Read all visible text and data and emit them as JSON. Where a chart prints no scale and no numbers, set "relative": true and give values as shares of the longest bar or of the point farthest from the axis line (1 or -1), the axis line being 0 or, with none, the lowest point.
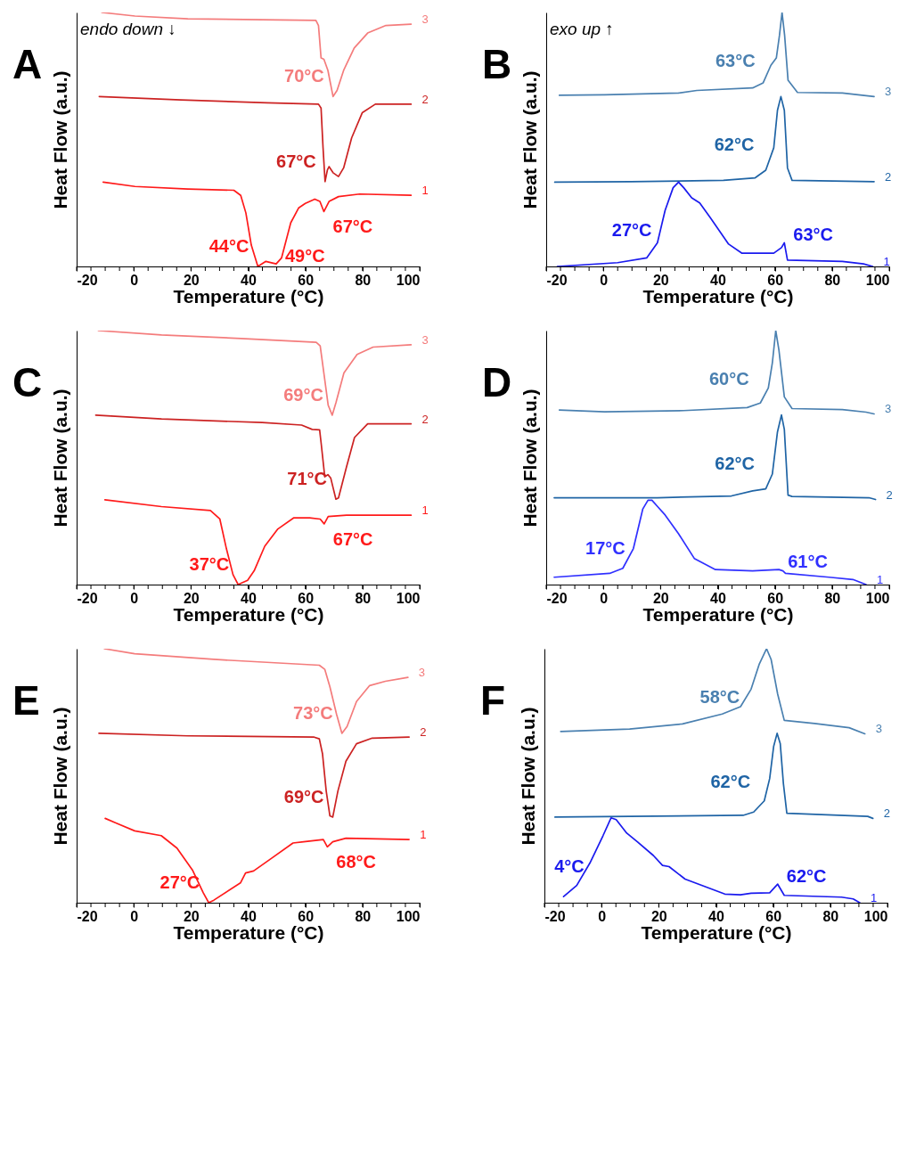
{
  "chart_data": [
    {
      "type": "line",
      "title": "A",
      "xlabel": "Temperature (°C)",
      "ylabel": "Heat Flow (a.u.)",
      "relative": true,
      "legend": false,
      "grid": false,
      "xlim": [
        -20,
        100
      ],
      "xticks": [
        -20,
        {
          "value": -15,
          "label": null
        },
        {
          "value": -10,
          "label": null
        },
        {
          "value": -5,
          "label": null
        },
        0,
        {
          "value": 5,
          "label": null
        },
        {
          "value": 10,
          "label": null
        },
        {
          "value": 15,
          "label": null
        },
        20,
        {
          "value": 25,
          "label": null
        },
        {
          "value": 30,
          "label": null
        },
        {
          "value": 35,
          "label": null
        },
        40,
        {
          "value": 45,
          "label": null
        },
        {
          "value": 50,
          "label": null
        },
        {
          "value": 55,
          "label": null
        },
        60,
        {
          "value": 65,
          "label": null
        },
        {
          "value": 70,
          "label": null
        },
        {
          "value": 75,
          "label": null
        },
        80,
        {
          "value": 85,
          "label": null
        },
        {
          "value": 90,
          "label": null
        },
        {
          "value": 95,
          "label": null
        },
        100
      ],
      "series": [
        {
          "name": "3",
          "color": "#f47c7c",
          "x": [
            -11.2,
            0.4,
            18.9,
            63.7,
            64.6,
            65.5,
            66.5,
            67.9,
            69.7,
            71.1,
            73.4,
            77.1,
            81.8,
            88.2,
            97
          ],
          "values": [
            1.0,
            0.986,
            0.975,
            0.969,
            0.949,
            0.821,
            0.816,
            0.772,
            0.669,
            0.693,
            0.772,
            0.86,
            0.919,
            0.949,
            0.954
          ]
        },
        {
          "name": "2",
          "color": "#cc2222",
          "x": [
            -12.1,
            16.5,
            46.6,
            64.6,
            65.5,
            66.2,
            66.9,
            67.7,
            68.3,
            69.7,
            71.6,
            73.4,
            76.2,
            79.9,
            84.5,
            97
          ],
          "values": [
            0.669,
            0.656,
            0.644,
            0.639,
            0.624,
            0.467,
            0.334,
            0.379,
            0.393,
            0.369,
            0.354,
            0.388,
            0.506,
            0.605,
            0.639,
            0.639
          ]
        },
        {
          "name": "1",
          "color": "#ff1a1a",
          "x": [
            -10.7,
            0.4,
            18.9,
            35.0,
            37.4,
            39.2,
            41.1,
            43.4,
            46.2,
            49.8,
            51.7,
            54.9,
            57.7,
            60,
            63.3,
            65.1,
            66.5,
            68.3,
            71.6,
            79,
            97
          ],
          "values": [
            0.332,
            0.315,
            0.305,
            0.3,
            0.28,
            0.211,
            0.084,
            0,
            0.02,
            0.01,
            0.034,
            0.172,
            0.231,
            0.248,
            0.265,
            0.256,
            0.216,
            0.256,
            0.275,
            0.285,
            0.28
          ]
        }
      ],
      "annotations": [
        "endo down ↓",
        {
          "text": "70°C",
          "x": 69.7,
          "y": 0.669
        },
        {
          "text": "67°C",
          "x": 66.9,
          "y": 0.334
        },
        {
          "text": "67°C",
          "x": 66.5,
          "y": 0.216
        },
        {
          "text": "44°C",
          "x": 43.4,
          "y": 0
        },
        {
          "text": "49°C",
          "x": 49.8,
          "y": 0.01
        }
      ]
    },
    {
      "type": "line",
      "title": "B",
      "xlabel": "Temperature (°C)",
      "ylabel": "Heat Flow (a.u.)",
      "relative": true,
      "legend": false,
      "grid": false,
      "xlim": [
        -20,
        100
      ],
      "xticks": [
        -20,
        {
          "value": -15,
          "label": null
        },
        {
          "value": -10,
          "label": null
        },
        {
          "value": -5,
          "label": null
        },
        0,
        {
          "value": 5,
          "label": null
        },
        {
          "value": 10,
          "label": null
        },
        {
          "value": 15,
          "label": null
        },
        20,
        {
          "value": 25,
          "label": null
        },
        {
          "value": 30,
          "label": null
        },
        {
          "value": 35,
          "label": null
        },
        40,
        {
          "value": 45,
          "label": null
        },
        {
          "value": 50,
          "label": null
        },
        {
          "value": 55,
          "label": null
        },
        60,
        {
          "value": 65,
          "label": null
        },
        {
          "value": 70,
          "label": null
        },
        {
          "value": 75,
          "label": null
        },
        80,
        {
          "value": 85,
          "label": null
        },
        {
          "value": 90,
          "label": null
        },
        {
          "value": 95,
          "label": null
        },
        100
      ],
      "series": [
        {
          "name": "3",
          "color": "#4a80b0",
          "x": [
            -15.4,
            0.4,
            26.3,
            32.7,
            52.2,
            55.9,
            58.6,
            60.5,
            61.6,
            62.5,
            63.4,
            64.6,
            67.9,
            83.6,
            94.7
          ],
          "values": [
            0.674,
            0.676,
            0.683,
            0.693,
            0.703,
            0.723,
            0.792,
            0.821,
            0.91,
            1.0,
            0.91,
            0.733,
            0.685,
            0.683,
            0.669
          ]
        },
        {
          "name": "2",
          "color": "#1f64a5",
          "x": [
            -17,
            9.6,
            42,
            53.1,
            56.8,
            59.6,
            60.9,
            62.1,
            63.3,
            64.4,
            66,
            94.7
          ],
          "values": [
            0.332,
            0.334,
            0.339,
            0.349,
            0.379,
            0.467,
            0.615,
            0.669,
            0.615,
            0.388,
            0.339,
            0.334
          ]
        },
        {
          "name": "1",
          "color": "#1a1aee",
          "x": [
            -16.1,
            5,
            15.2,
            18.9,
            21.6,
            24.4,
            26.3,
            28.1,
            30.9,
            33.7,
            37.4,
            43.8,
            48.5,
            59.6,
            62.3,
            63.3,
            64.4,
            83.6,
            91,
            94.2
          ],
          "values": [
            0,
            0.015,
            0.034,
            0.093,
            0.221,
            0.31,
            0.332,
            0.31,
            0.27,
            0.25,
            0.192,
            0.088,
            0.052,
            0.052,
            0.074,
            0.093,
            0.025,
            0.02,
            0.01,
            0
          ]
        }
      ],
      "annotations": [
        "exo up ↑",
        {
          "text": "63°C",
          "x": 62.5,
          "y": 1.0
        },
        {
          "text": "62°C",
          "x": 62.1,
          "y": 0.669
        },
        {
          "text": "27°C",
          "x": 26.3,
          "y": 0.332
        },
        {
          "text": "63°C",
          "x": 63.3,
          "y": 0.093
        }
      ]
    },
    {
      "type": "line",
      "title": "C",
      "xlabel": "Temperature (°C)",
      "ylabel": "Heat Flow (a.u.)",
      "relative": true,
      "legend": false,
      "grid": false,
      "xlim": [
        -20,
        100
      ],
      "xticks": [
        -20,
        {
          "value": -15,
          "label": null
        },
        {
          "value": -10,
          "label": null
        },
        {
          "value": -5,
          "label": null
        },
        0,
        {
          "value": 5,
          "label": null
        },
        {
          "value": 10,
          "label": null
        },
        {
          "value": 15,
          "label": null
        },
        20,
        {
          "value": 25,
          "label": null
        },
        {
          "value": 30,
          "label": null
        },
        {
          "value": 35,
          "label": null
        },
        40,
        {
          "value": 45,
          "label": null
        },
        {
          "value": 50,
          "label": null
        },
        {
          "value": 55,
          "label": null
        },
        60,
        {
          "value": 65,
          "label": null
        },
        {
          "value": 70,
          "label": null
        },
        {
          "value": 75,
          "label": null
        },
        80,
        {
          "value": 85,
          "label": null
        },
        {
          "value": 90,
          "label": null
        },
        {
          "value": 95,
          "label": null
        },
        100
      ],
      "series": [
        {
          "name": "3",
          "color": "#f47c7c",
          "x": [
            -12.4,
            9.7,
            37.5,
            63.8,
            65.2,
            66.6,
            68,
            69.4,
            70.7,
            73.5,
            78.1,
            83.7,
            97
          ],
          "values": [
            1.0,
            0.983,
            0.969,
            0.954,
            0.94,
            0.823,
            0.706,
            0.667,
            0.716,
            0.833,
            0.906,
            0.935,
            0.944
          ]
        },
        {
          "name": "2",
          "color": "#cc2222",
          "x": [
            -13.3,
            9.7,
            44.9,
            58.7,
            62.4,
            65,
            65.6,
            66.8,
            67.9,
            68.9,
            70.7,
            71.6,
            74.4,
            77.2,
            81.8,
            97
          ],
          "values": [
            0.667,
            0.652,
            0.638,
            0.628,
            0.611,
            0.609,
            0.55,
            0.424,
            0.433,
            0.419,
            0.336,
            0.341,
            0.463,
            0.579,
            0.633,
            0.633
          ]
        },
        {
          "name": "1",
          "color": "#ff1a1a",
          "x": [
            -10.1,
            9.7,
            26.8,
            30.1,
            32.4,
            34.7,
            36.5,
            37.5,
            39.8,
            42.1,
            45.8,
            50.4,
            56,
            61.5,
            65.2,
            66.6,
            68,
            74.4,
            97
          ],
          "values": [
            0.334,
            0.307,
            0.292,
            0.258,
            0.141,
            0.039,
            0,
            0.005,
            0.017,
            0.054,
            0.151,
            0.219,
            0.263,
            0.263,
            0.258,
            0.239,
            0.268,
            0.273,
            0.273
          ]
        }
      ],
      "annotations": [
        {
          "text": "69°C",
          "x": 69.4,
          "y": 0.667
        },
        {
          "text": "71°C",
          "x": 70.7,
          "y": 0.336
        },
        {
          "text": "67°C",
          "x": 66.6,
          "y": 0.239
        },
        {
          "text": "37°C",
          "x": 36.5,
          "y": 0
        }
      ]
    },
    {
      "type": "line",
      "title": "D",
      "xlabel": "Temperature (°C)",
      "ylabel": "Heat Flow (a.u.)",
      "relative": true,
      "legend": false,
      "grid": false,
      "xlim": [
        -20,
        100
      ],
      "xticks": [
        -20,
        {
          "value": -15,
          "label": null
        },
        {
          "value": -10,
          "label": null
        },
        {
          "value": -5,
          "label": null
        },
        0,
        {
          "value": 5,
          "label": null
        },
        {
          "value": 10,
          "label": null
        },
        {
          "value": 15,
          "label": null
        },
        20,
        {
          "value": 25,
          "label": null
        },
        {
          "value": 30,
          "label": null
        },
        {
          "value": 35,
          "label": null
        },
        40,
        {
          "value": 45,
          "label": null
        },
        {
          "value": 50,
          "label": null
        },
        {
          "value": 55,
          "label": null
        },
        60,
        {
          "value": 65,
          "label": null
        },
        {
          "value": 70,
          "label": null
        },
        {
          "value": 75,
          "label": null
        },
        80,
        {
          "value": 85,
          "label": null
        },
        {
          "value": 90,
          "label": null
        },
        {
          "value": 95,
          "label": null
        },
        100
      ],
      "series": [
        {
          "name": "3",
          "color": "#4a80b0",
          "x": [
            -15.4,
            0.4,
            28.1,
            50.3,
            54.9,
            57.7,
            59.1,
            60.3,
            61.4,
            63.3,
            66,
            83.6,
            91.9,
            94.7
          ],
          "values": [
            0.687,
            0.68,
            0.685,
            0.697,
            0.715,
            0.774,
            0.872,
            1.0,
            0.924,
            0.739,
            0.693,
            0.689,
            0.679,
            0.672
          ]
        },
        {
          "name": "2",
          "color": "#1f64a5",
          "x": [
            -17.2,
            18.9,
            44.8,
            52.2,
            56.8,
            59.1,
            60.9,
            62.3,
            63.3,
            64.6,
            66,
            92.9,
            95.2
          ],
          "values": [
            0.342,
            0.342,
            0.349,
            0.369,
            0.377,
            0.435,
            0.601,
            0.668,
            0.611,
            0.352,
            0.347,
            0.342,
            0.335
          ]
        },
        {
          "name": "1",
          "color": "#3030ff",
          "x": [
            -17.2,
            2.2,
            6.8,
            10.5,
            13.8,
            15.6,
            17,
            18.9,
            21.6,
            26.3,
            31.8,
            39.2,
            52.2,
            61.4,
            62.8,
            63.7,
            79,
            87.3,
            91.9
          ],
          "values": [
            0.029,
            0.044,
            0.064,
            0.142,
            0.298,
            0.332,
            0.332,
            0.308,
            0.274,
            0.2,
            0.103,
            0.059,
            0.054,
            0.059,
            0.054,
            0.044,
            0.029,
            0.02,
            0
          ]
        }
      ],
      "annotations": [
        {
          "text": "60°C",
          "x": 60.3,
          "y": 1.0
        },
        {
          "text": "62°C",
          "x": 62.3,
          "y": 0.668
        },
        {
          "text": "17°C",
          "x": 17,
          "y": 0.332
        },
        {
          "text": "61°C",
          "x": 61.4,
          "y": 0.059
        }
      ]
    },
    {
      "type": "line",
      "title": "E",
      "xlabel": "Temperature (°C)",
      "ylabel": "Heat Flow (a.u.)",
      "relative": true,
      "legend": false,
      "grid": false,
      "xlim": [
        -20,
        100
      ],
      "xticks": [
        -20,
        {
          "value": -15,
          "label": null
        },
        {
          "value": -10,
          "label": null
        },
        {
          "value": -5,
          "label": null
        },
        0,
        {
          "value": 5,
          "label": null
        },
        {
          "value": 10,
          "label": null
        },
        {
          "value": 15,
          "label": null
        },
        20,
        {
          "value": 25,
          "label": null
        },
        {
          "value": 30,
          "label": null
        },
        {
          "value": 35,
          "label": null
        },
        40,
        {
          "value": 45,
          "label": null
        },
        {
          "value": 50,
          "label": null
        },
        {
          "value": 55,
          "label": null
        },
        60,
        {
          "value": 65,
          "label": null
        },
        {
          "value": 70,
          "label": null
        },
        {
          "value": 75,
          "label": null
        },
        80,
        {
          "value": 85,
          "label": null
        },
        {
          "value": 90,
          "label": null
        },
        {
          "value": 95,
          "label": null
        },
        100
      ],
      "series": [
        {
          "name": "3",
          "color": "#f47c7c",
          "x": [
            -10.3,
            0.3,
            28,
            64.9,
            66.8,
            68.6,
            70.9,
            72.8,
            74.6,
            77.9,
            82.5,
            88,
            95.9
          ],
          "values": [
            1.0,
            0.98,
            0.958,
            0.935,
            0.919,
            0.85,
            0.743,
            0.667,
            0.694,
            0.792,
            0.855,
            0.872,
            0.887
          ]
        },
        {
          "name": "2",
          "color": "#cc2222",
          "x": [
            -12.2,
            18.8,
            63.1,
            64.9,
            66,
            67.3,
            68.6,
            69.6,
            71.4,
            74.2,
            77.9,
            83.4,
            96.3
          ],
          "values": [
            0.667,
            0.657,
            0.652,
            0.645,
            0.587,
            0.44,
            0.342,
            0.337,
            0.44,
            0.557,
            0.626,
            0.648,
            0.652
          ]
        },
        {
          "name": "1",
          "color": "#ff1a1a",
          "x": [
            -10,
            -6.1,
            0.3,
            9.6,
            15.1,
            20.6,
            24.3,
            26.2,
            28,
            37.3,
            39.1,
            41.9,
            48.3,
            55.7,
            59.4,
            66.3,
            67.7,
            69.6,
            74.2,
            96.3
          ],
          "values": [
            0.332,
            0.313,
            0.283,
            0.264,
            0.215,
            0.127,
            0.039,
            0,
            0.01,
            0.078,
            0.117,
            0.125,
            0.176,
            0.235,
            0.24,
            0.249,
            0.22,
            0.24,
            0.254,
            0.249
          ]
        }
      ],
      "annotations": [
        {
          "text": "73°C",
          "x": 72.8,
          "y": 0.667
        },
        {
          "text": "69°C",
          "x": 69.6,
          "y": 0.337
        },
        {
          "text": "68°C",
          "x": 67.7,
          "y": 0.22
        },
        {
          "text": "27°C",
          "x": 26.2,
          "y": 0
        }
      ]
    },
    {
      "type": "line",
      "title": "F",
      "xlabel": "Temperature (°C)",
      "ylabel": "Heat Flow (a.u.)",
      "relative": true,
      "legend": false,
      "grid": false,
      "xlim": [
        -20,
        100
      ],
      "xticks": [
        -20,
        {
          "value": -15,
          "label": null
        },
        {
          "value": -10,
          "label": null
        },
        {
          "value": -5,
          "label": null
        },
        0,
        {
          "value": 5,
          "label": null
        },
        {
          "value": 10,
          "label": null
        },
        {
          "value": 15,
          "label": null
        },
        20,
        {
          "value": 25,
          "label": null
        },
        {
          "value": 30,
          "label": null
        },
        {
          "value": 35,
          "label": null
        },
        40,
        {
          "value": 45,
          "label": null
        },
        {
          "value": 50,
          "label": null
        },
        {
          "value": 55,
          "label": null
        },
        60,
        {
          "value": 65,
          "label": null
        },
        {
          "value": 70,
          "label": null
        },
        {
          "value": 75,
          "label": null
        },
        80,
        {
          "value": 85,
          "label": null
        },
        {
          "value": 90,
          "label": null
        },
        {
          "value": 95,
          "label": null
        },
        100
      ],
      "series": [
        {
          "name": "3",
          "color": "#4a80b0",
          "x": [
            -14.3,
            9.8,
            28.3,
            42.2,
            48.6,
            52.3,
            55.1,
            57.7,
            59.3,
            61.6,
            63.9,
            74.5,
            86.6,
            92.1
          ],
          "values": [
            0.674,
            0.684,
            0.704,
            0.743,
            0.772,
            0.841,
            0.938,
            1.0,
            0.958,
            0.821,
            0.718,
            0.706,
            0.689,
            0.665
          ]
        },
        {
          "name": "2",
          "color": "#1f64a5",
          "x": [
            -16.3,
            9.8,
            49.5,
            53.2,
            56.9,
            58.8,
            60.2,
            61.4,
            62.5,
            63.6,
            64.8,
            93.1,
            94.9
          ],
          "values": [
            0.337,
            0.34,
            0.344,
            0.357,
            0.401,
            0.489,
            0.616,
            0.667,
            0.626,
            0.469,
            0.352,
            0.34,
            0.332
          ]
        },
        {
          "name": "1",
          "color": "#1a1aee",
          "x": [
            -13.3,
            -8.7,
            -4.1,
            0.5,
            3.3,
            5.1,
            8.8,
            12.6,
            18.1,
            21.3,
            23.6,
            29.2,
            43.1,
            48.6,
            52.3,
            58.8,
            61.6,
            63.9,
            83.9,
            88,
            90.3
          ],
          "values": [
            0.024,
            0.068,
            0.156,
            0.264,
            0.334,
            0.327,
            0.274,
            0.239,
            0.186,
            0.147,
            0.142,
            0.093,
            0.034,
            0.031,
            0.037,
            0.039,
            0.073,
            0.029,
            0.022,
            0.015,
            0
          ]
        }
      ],
      "annotations": [
        {
          "text": "58°C",
          "x": 57.7,
          "y": 1.0
        },
        {
          "text": "62°C",
          "x": 61.4,
          "y": 0.667
        },
        {
          "text": "4°C",
          "x": 3.3,
          "y": 0.334
        },
        {
          "text": "62°C",
          "x": 61.6,
          "y": 0.073
        }
      ]
    }
  ]
}
